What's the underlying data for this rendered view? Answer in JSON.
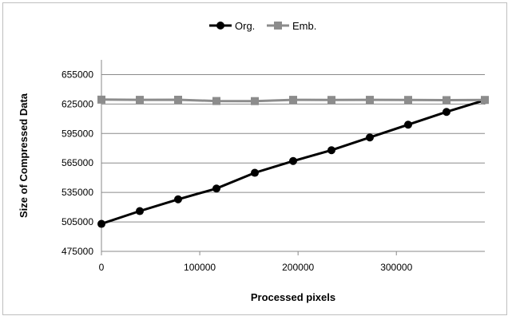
{
  "chart_data": {
    "type": "line",
    "xlabel": "Processed pixels",
    "ylabel": "Size of Compressed Data",
    "xlim": [
      0,
      390000
    ],
    "ylim": [
      475000,
      670000
    ],
    "x_ticks": [
      0,
      100000,
      200000,
      300000
    ],
    "y_ticks": [
      475000,
      505000,
      535000,
      565000,
      595000,
      625000,
      655000
    ],
    "grid": "horizontal",
    "legend": "top-center",
    "series": [
      {
        "name": "Org.",
        "color": "#000000",
        "marker": "circle",
        "x": [
          0,
          39000,
          78000,
          117000,
          156000,
          195000,
          234000,
          273000,
          312000,
          351000,
          390000
        ],
        "y": [
          503000,
          516000,
          528000,
          539000,
          555000,
          567000,
          578000,
          591000,
          604000,
          617000,
          629000
        ]
      },
      {
        "name": "Emb.",
        "color": "#8c8c8c",
        "marker": "square",
        "x": [
          0,
          39000,
          78000,
          117000,
          156000,
          195000,
          234000,
          273000,
          312000,
          351000,
          390000
        ],
        "y": [
          629500,
          629300,
          629400,
          628100,
          628000,
          629300,
          629200,
          629300,
          629200,
          629000,
          629200
        ]
      }
    ]
  }
}
